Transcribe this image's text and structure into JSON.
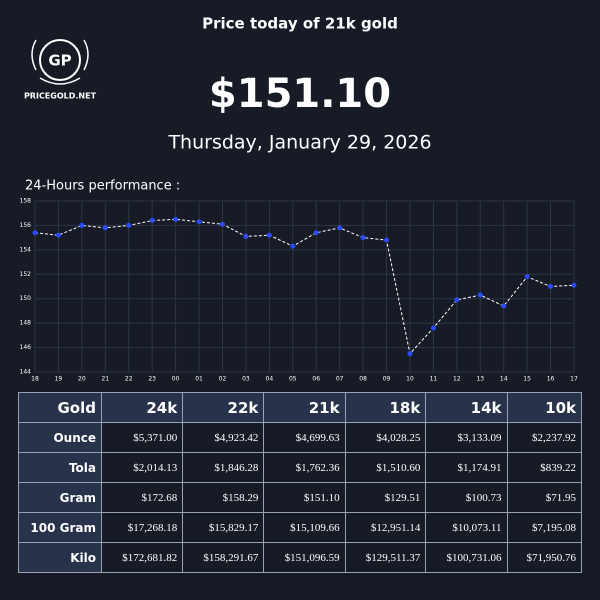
{
  "logo": {
    "initials": "GP",
    "site": "PRICEGOLD.NET"
  },
  "header": {
    "title": "Price today of 21k gold",
    "price": "$151.10",
    "date": "Thursday, January 29, 2026"
  },
  "chart_data": {
    "type": "line",
    "title": "24-Hours performance :",
    "categories": [
      "18",
      "19",
      "20",
      "21",
      "22",
      "23",
      "00",
      "01",
      "02",
      "03",
      "04",
      "05",
      "06",
      "07",
      "08",
      "09",
      "10",
      "11",
      "12",
      "13",
      "14",
      "15",
      "16",
      "17"
    ],
    "series": [
      {
        "color": "#2a4cff",
        "values": [
          155.4,
          155.2,
          156.0,
          155.8,
          156.0,
          156.4,
          156.5,
          156.3,
          156.1,
          155.1,
          155.2,
          154.3,
          155.4,
          155.8,
          155.0,
          154.8,
          145.5,
          147.6,
          149.9,
          150.3,
          149.4,
          151.8,
          151.0,
          151.1
        ]
      }
    ],
    "ylim": [
      144,
      158
    ],
    "yticks": [
      144,
      146,
      148,
      150,
      152,
      154,
      156,
      158
    ],
    "grid": true
  },
  "table": {
    "header": [
      "Gold",
      "24k",
      "22k",
      "21k",
      "18k",
      "14k",
      "10k"
    ],
    "rows": [
      [
        "Ounce",
        "$5,371.00",
        "$4,923.42",
        "$4,699.63",
        "$4,028.25",
        "$3,133.09",
        "$2,237.92"
      ],
      [
        "Tola",
        "$2,014.13",
        "$1,846.28",
        "$1,762.36",
        "$1,510.60",
        "$1,174.91",
        "$839.22"
      ],
      [
        "Gram",
        "$172.68",
        "$158.29",
        "$151.10",
        "$129.51",
        "$100.73",
        "$71.95"
      ],
      [
        "100 Gram",
        "$17,268.18",
        "$15,829.17",
        "$15,109.66",
        "$12,951.14",
        "$10,073.11",
        "$7,195.08"
      ],
      [
        "Kilo",
        "$172,681.82",
        "$158,291.67",
        "$151,096.59",
        "$129,511.37",
        "$100,731.06",
        "$71,950.76"
      ]
    ]
  }
}
